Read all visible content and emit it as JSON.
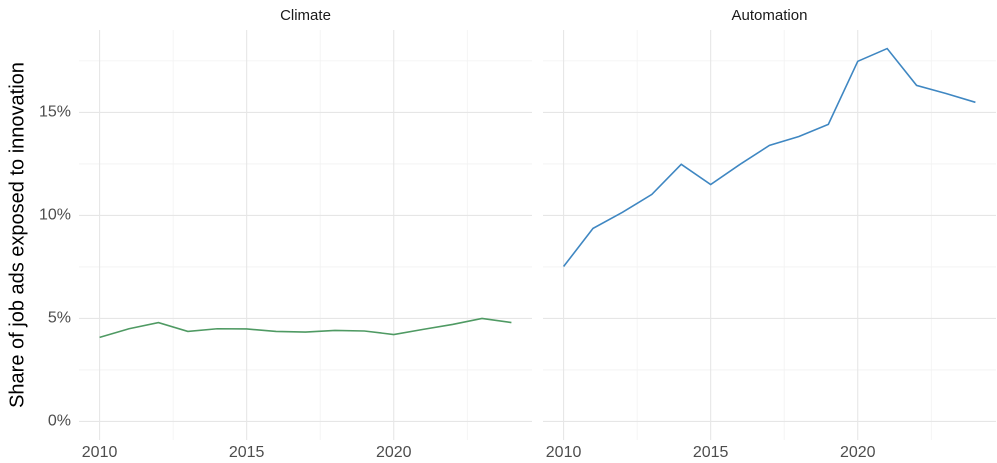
{
  "ylabel": "Share of job ads exposed to innovation",
  "chart_data": [
    {
      "type": "line",
      "title": "Climate",
      "x": [
        2010,
        2011,
        2012,
        2013,
        2014,
        2015,
        2016,
        2017,
        2018,
        2019,
        2020,
        2021,
        2022,
        2023,
        2024
      ],
      "series": [
        {
          "name": "Climate",
          "color": "#4f9a63",
          "values": [
            4.08,
            4.5,
            4.8,
            4.37,
            4.5,
            4.49,
            4.37,
            4.34,
            4.42,
            4.39,
            4.22,
            4.47,
            4.71,
            5.0,
            4.8
          ]
        }
      ],
      "xlim": [
        2009.3,
        2024.7
      ],
      "xticks": [
        2010,
        2015,
        2020
      ],
      "minor_xticks": [
        2012.5,
        2017.5,
        2022.5
      ],
      "ylim": [
        -0.9,
        19.0
      ],
      "yticks": [
        {
          "value": 0,
          "label": "0%"
        },
        {
          "value": 5,
          "label": "5%"
        },
        {
          "value": 10,
          "label": "10%"
        },
        {
          "value": 15,
          "label": "15%"
        }
      ],
      "minor_yticks": [
        2.5,
        7.5,
        12.5,
        17.5
      ],
      "grid": true
    },
    {
      "type": "line",
      "title": "Automation",
      "x": [
        2010,
        2011,
        2012,
        2013,
        2014,
        2015,
        2016,
        2017,
        2018,
        2019,
        2020,
        2021,
        2022,
        2023,
        2024
      ],
      "series": [
        {
          "name": "Automation",
          "color": "#3f87c2",
          "values": [
            7.52,
            9.37,
            10.15,
            11.02,
            12.48,
            11.5,
            12.48,
            13.4,
            13.83,
            14.42,
            17.48,
            18.1,
            16.31,
            15.92,
            15.49
          ]
        }
      ],
      "xlim": [
        2009.3,
        2024.7
      ],
      "xticks": [
        2010,
        2015,
        2020
      ],
      "minor_xticks": [
        2012.5,
        2017.5,
        2022.5
      ],
      "ylim": [
        -0.9,
        19.0
      ],
      "minor_yticks": [
        2.5,
        7.5,
        12.5,
        17.5
      ],
      "grid": true
    }
  ]
}
